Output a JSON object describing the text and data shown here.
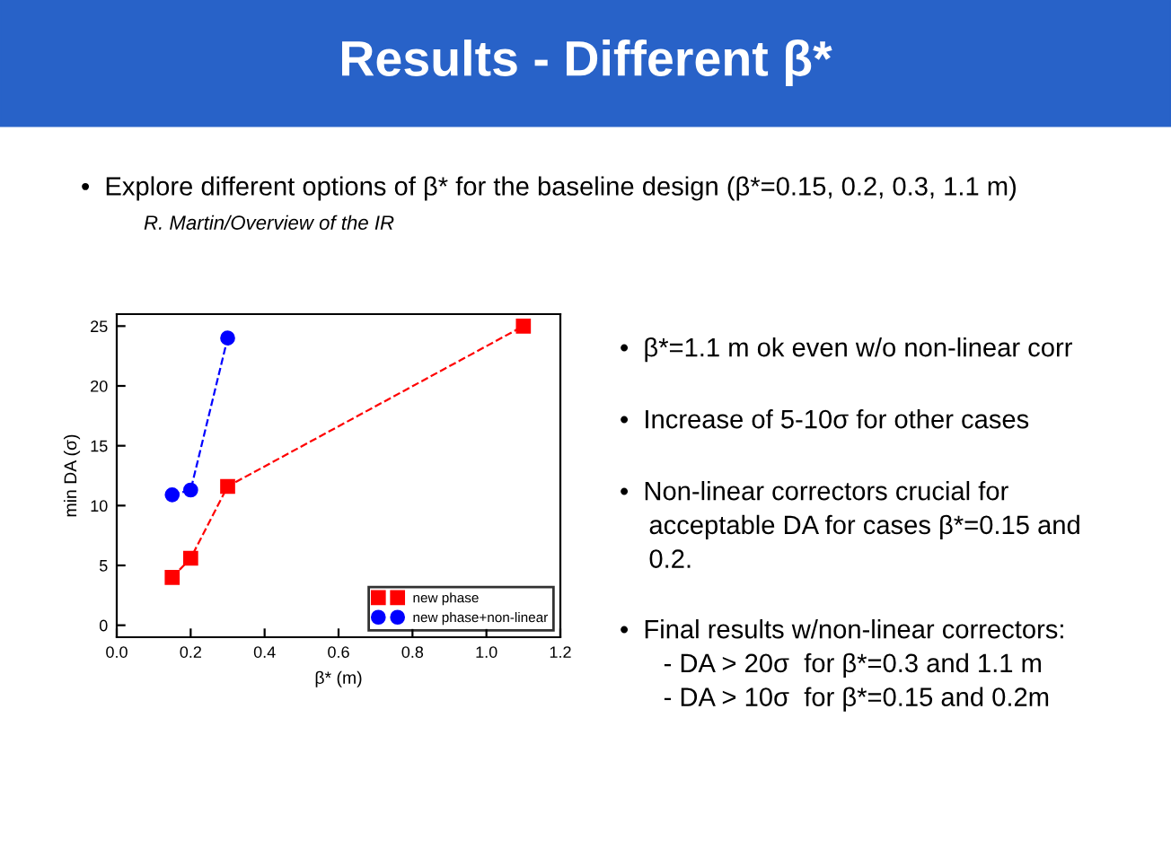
{
  "chart_data": {
    "type": "line",
    "title": "Results - Different β*",
    "subtitle": "•  Explore different options of β* for the baseline design (β*=0.15, 0.2, 0.3, 1.1 m)",
    "annotations": [
      "R. Martin/Overview of the IR",
      "•  β*=1.1 m ok even w/o non-linear corr",
      "•  Increase of 5-10σ for other cases",
      "•  Non-linear correctors crucial for\n    acceptable DA for cases β*=0.15 and\n    0.2.",
      "•  Final results w/non-linear correctors:\n      - DA > 20σ  for β*=0.3 and 1.1 m\n      - DA > 10σ  for β*=0.15 and 0.2m"
    ],
    "xlabel": "β* (m)",
    "ylabel": "min DA (σ)",
    "series": [
      {
        "name": "new phase",
        "color": "#ff0000",
        "marker": "square",
        "line_style": "dashed",
        "x": [
          0.15,
          0.2,
          0.3,
          1.1
        ],
        "values": [
          4.0,
          5.6,
          11.6,
          25.0
        ]
      },
      {
        "name": "new phase+non-linear",
        "color": "#0000ff",
        "marker": "circle",
        "line_style": "dashed",
        "x": [
          0.15,
          0.2,
          0.3
        ],
        "values": [
          10.9,
          11.3,
          24.0
        ]
      }
    ],
    "xlim": [
      0.0,
      1.2
    ],
    "xticks": [
      {
        "value": 0,
        "label": "0.0"
      },
      0.2,
      0.4,
      0.6,
      0.8,
      {
        "value": 1,
        "label": "1.0"
      },
      1.2
    ],
    "ylim": [
      -1,
      26
    ],
    "yticks": [
      0,
      5,
      10,
      15,
      20,
      25
    ],
    "grid": false,
    "legend": "bottom right"
  }
}
